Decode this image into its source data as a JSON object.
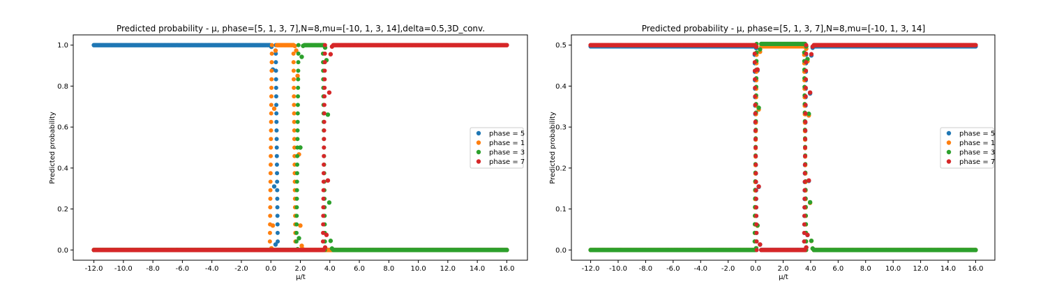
{
  "chart_data": [
    {
      "type": "scatter",
      "title": "Predicted probability - μ, phase=[5, 1, 3, 7],N=8,mu=[-10, 1, 3, 14],delta=0.5,3D_conv.",
      "xlabel": "μ/t",
      "ylabel": "Predicted probability",
      "xlim": [
        -13.4,
        17.4
      ],
      "ylim": [
        -0.05,
        1.05
      ],
      "xticks": [
        -12,
        -10,
        -8,
        -6,
        -4,
        -2,
        0,
        2,
        4,
        6,
        8,
        10,
        12,
        14,
        16
      ],
      "xtick_labels": [
        "-12.0",
        "-10.0",
        "-8.0",
        "-6.0",
        "-4.0",
        "-2.0",
        "0.0",
        "2.0",
        "4.0",
        "6.0",
        "8.0",
        "10.0",
        "12.0",
        "14.0",
        "16.0"
      ],
      "yticks": [
        0.0,
        0.2,
        0.4,
        0.6,
        0.8,
        1.0
      ],
      "ytick_labels": [
        "0.0",
        "0.2",
        "0.4",
        "0.6",
        "0.8",
        "1.0"
      ],
      "x_range": [
        -12,
        16
      ],
      "legend_position": "center-right",
      "grid": false,
      "series": [
        {
          "name": "phase = 5",
          "color": "#1f77b4",
          "segments": [
            [
              -12,
              0.0,
              1.0
            ],
            [
              0.0,
              0.4,
              1.0
            ],
            [
              0.4,
              16,
              0.0
            ]
          ]
        },
        {
          "name": "phase = 1",
          "color": "#ff7f0e",
          "segments": [
            [
              -12,
              0.0,
              0.0
            ],
            [
              0.0,
              0.4,
              1.0
            ],
            [
              0.4,
              1.6,
              1.0
            ],
            [
              1.6,
              2.2,
              0.0
            ],
            [
              2.2,
              16,
              0.0
            ]
          ]
        },
        {
          "name": "phase = 3",
          "color": "#2ca02c",
          "segments": [
            [
              -12,
              1.8,
              0.0
            ],
            [
              1.8,
              2.2,
              1.0
            ],
            [
              2.2,
              3.6,
              1.0
            ],
            [
              3.6,
              4.2,
              0.0
            ],
            [
              4.2,
              16,
              0.0
            ]
          ]
        },
        {
          "name": "phase = 7",
          "color": "#d62728",
          "segments": [
            [
              -12,
              3.6,
              0.0
            ],
            [
              3.6,
              4.2,
              1.0
            ],
            [
              4.2,
              16,
              1.0
            ]
          ]
        }
      ]
    },
    {
      "type": "scatter",
      "title": "Predicted probability - μ, phase=[5, 1, 3, 7],N=8,mu=[-10, 1, 3, 14]",
      "xlabel": "μ/t",
      "ylabel": "Predicted probability",
      "xlim": [
        -13.4,
        17.4
      ],
      "ylim": [
        -0.025,
        0.525
      ],
      "xticks": [
        -12,
        -10,
        -8,
        -6,
        -4,
        -2,
        0,
        2,
        4,
        6,
        8,
        10,
        12,
        14,
        16
      ],
      "xtick_labels": [
        "-12.0",
        "-10.0",
        "-8.0",
        "-6.0",
        "-4.0",
        "-2.0",
        "0.0",
        "2.0",
        "4.0",
        "6.0",
        "8.0",
        "10.0",
        "12.0",
        "14.0",
        "16.0"
      ],
      "yticks": [
        0.0,
        0.1,
        0.2,
        0.3,
        0.4,
        0.5
      ],
      "ytick_labels": [
        "0.0",
        "0.1",
        "0.2",
        "0.3",
        "0.4",
        "0.5"
      ],
      "x_range": [
        -12,
        16
      ],
      "legend_position": "center-right",
      "grid": false,
      "series": [
        {
          "name": "phase = 5",
          "color": "#1f77b4",
          "segments": [
            [
              -12,
              0.0,
              0.497
            ],
            [
              0.0,
              0.4,
              0.0
            ],
            [
              0.4,
              3.6,
              0.0
            ],
            [
              3.6,
              4.2,
              0.497
            ],
            [
              4.2,
              16,
              0.497
            ]
          ]
        },
        {
          "name": "phase = 1",
          "color": "#ff7f0e",
          "segments": [
            [
              -12,
              0.0,
              0.0
            ],
            [
              0.0,
              0.4,
              0.497
            ],
            [
              0.4,
              3.6,
              0.497
            ],
            [
              3.6,
              4.2,
              0.0
            ],
            [
              4.2,
              16,
              0.0
            ]
          ]
        },
        {
          "name": "phase = 3",
          "color": "#2ca02c",
          "segments": [
            [
              -12,
              0.0,
              0.0
            ],
            [
              0.0,
              0.4,
              0.503
            ],
            [
              0.4,
              3.6,
              0.503
            ],
            [
              3.6,
              4.2,
              0.0
            ],
            [
              4.2,
              16,
              0.0
            ]
          ]
        },
        {
          "name": "phase = 7",
          "color": "#d62728",
          "segments": [
            [
              -12,
              0.0,
              0.5
            ],
            [
              0.0,
              0.4,
              0.0
            ],
            [
              0.4,
              3.6,
              0.0
            ],
            [
              3.6,
              4.2,
              0.5
            ],
            [
              4.2,
              16,
              0.5
            ]
          ]
        }
      ]
    }
  ]
}
